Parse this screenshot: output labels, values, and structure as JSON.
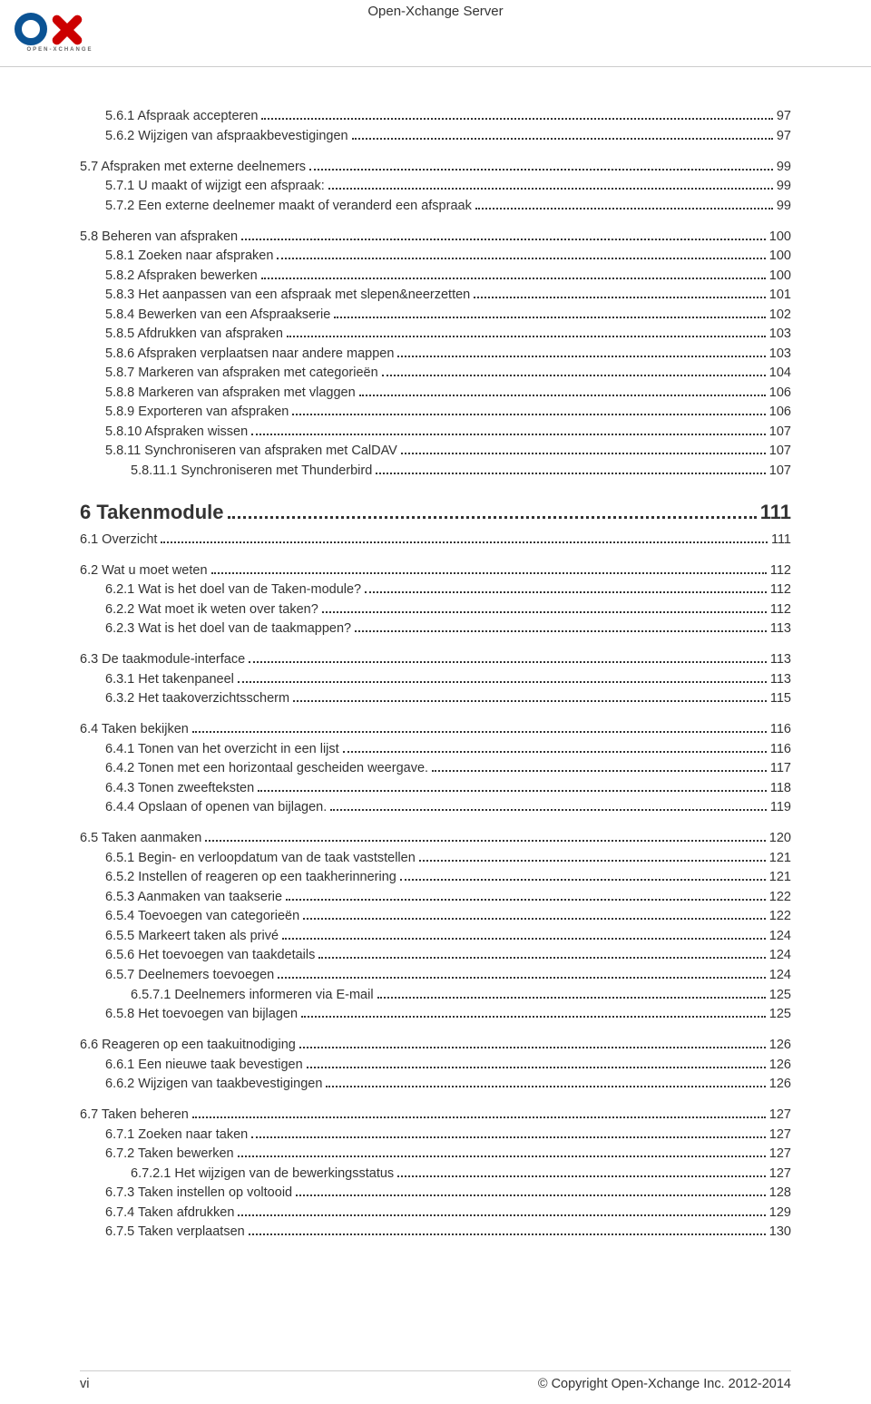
{
  "header": {
    "title": "Open-Xchange Server"
  },
  "logo": {
    "color_blue": "#0b5394",
    "color_red": "#cc0000",
    "subtext": "OPEN-XCHANGE",
    "subtext_color": "#666666"
  },
  "toc": [
    {
      "indent": 1,
      "label": "5.6.1 Afspraak accepteren",
      "page": "97"
    },
    {
      "indent": 1,
      "label": "5.6.2 Wijzigen van afspraakbevestigingen",
      "page": "97"
    },
    {
      "indent": 0,
      "label": "5.7 Afspraken met externe deelnemers",
      "page": "99",
      "group": true
    },
    {
      "indent": 1,
      "label": "5.7.1 U maakt of wijzigt een afspraak:",
      "page": "99"
    },
    {
      "indent": 1,
      "label": "5.7.2 Een externe deelnemer maakt of veranderd een afspraak",
      "page": "99"
    },
    {
      "indent": 0,
      "label": "5.8 Beheren van afspraken",
      "page": "100",
      "group": true
    },
    {
      "indent": 1,
      "label": "5.8.1 Zoeken naar afspraken",
      "page": "100"
    },
    {
      "indent": 1,
      "label": "5.8.2 Afspraken bewerken",
      "page": "100"
    },
    {
      "indent": 1,
      "label": "5.8.3 Het aanpassen van een afspraak met slepen&neerzetten",
      "page": "101"
    },
    {
      "indent": 1,
      "label": "5.8.4 Bewerken van een Afspraakserie",
      "page": "102"
    },
    {
      "indent": 1,
      "label": "5.8.5 Afdrukken van afspraken",
      "page": "103"
    },
    {
      "indent": 1,
      "label": "5.8.6 Afspraken verplaatsen naar andere mappen",
      "page": "103"
    },
    {
      "indent": 1,
      "label": "5.8.7 Markeren van afspraken met categorieën",
      "page": "104"
    },
    {
      "indent": 1,
      "label": "5.8.8 Markeren van afspraken met vlaggen",
      "page": "106"
    },
    {
      "indent": 1,
      "label": "5.8.9 Exporteren van afspraken",
      "page": "106"
    },
    {
      "indent": 1,
      "label": "5.8.10 Afspraken wissen",
      "page": "107"
    },
    {
      "indent": 1,
      "label": "5.8.11 Synchroniseren van afspraken met CalDAV",
      "page": "107"
    },
    {
      "indent": 2,
      "label": "5.8.11.1 Synchroniseren met Thunderbird",
      "page": "107"
    },
    {
      "indent": 0,
      "label": "6 Takenmodule",
      "page": "111",
      "chapter": true
    },
    {
      "indent": 0,
      "label": "6.1 Overzicht",
      "page": "111"
    },
    {
      "indent": 0,
      "label": "6.2 Wat u moet weten",
      "page": "112",
      "group": true
    },
    {
      "indent": 1,
      "label": "6.2.1 Wat is het doel van de Taken-module?",
      "page": "112"
    },
    {
      "indent": 1,
      "label": "6.2.2 Wat moet ik weten over taken?",
      "page": "112"
    },
    {
      "indent": 1,
      "label": "6.2.3 Wat is het doel van de taakmappen?",
      "page": "113"
    },
    {
      "indent": 0,
      "label": "6.3 De taakmodule-interface",
      "page": "113",
      "group": true
    },
    {
      "indent": 1,
      "label": "6.3.1 Het takenpaneel",
      "page": "113"
    },
    {
      "indent": 1,
      "label": "6.3.2 Het taakoverzichtsscherm",
      "page": "115"
    },
    {
      "indent": 0,
      "label": "6.4 Taken bekijken",
      "page": "116",
      "group": true
    },
    {
      "indent": 1,
      "label": "6.4.1 Tonen van het overzicht in een lijst",
      "page": "116"
    },
    {
      "indent": 1,
      "label": "6.4.2 Tonen met een horizontaal gescheiden weergave.",
      "page": "117"
    },
    {
      "indent": 1,
      "label": "6.4.3 Tonen zweefteksten",
      "page": "118"
    },
    {
      "indent": 1,
      "label": "6.4.4 Opslaan of openen van bijlagen.",
      "page": "119"
    },
    {
      "indent": 0,
      "label": "6.5 Taken aanmaken",
      "page": "120",
      "group": true
    },
    {
      "indent": 1,
      "label": "6.5.1 Begin- en verloopdatum van de taak vaststellen",
      "page": "121"
    },
    {
      "indent": 1,
      "label": "6.5.2 Instellen of reageren op een taakherinnering",
      "page": "121"
    },
    {
      "indent": 1,
      "label": "6.5.3 Aanmaken van taakserie",
      "page": "122"
    },
    {
      "indent": 1,
      "label": "6.5.4 Toevoegen van categorieën",
      "page": "122"
    },
    {
      "indent": 1,
      "label": "6.5.5 Markeert taken als privé",
      "page": "124"
    },
    {
      "indent": 1,
      "label": "6.5.6 Het toevoegen van taakdetails",
      "page": "124"
    },
    {
      "indent": 1,
      "label": "6.5.7 Deelnemers toevoegen",
      "page": "124"
    },
    {
      "indent": 2,
      "label": "6.5.7.1 Deelnemers informeren via E-mail",
      "page": "125"
    },
    {
      "indent": 1,
      "label": "6.5.8 Het toevoegen van bijlagen",
      "page": "125"
    },
    {
      "indent": 0,
      "label": "6.6 Reageren op een taakuitnodiging",
      "page": "126",
      "group": true
    },
    {
      "indent": 1,
      "label": "6.6.1 Een nieuwe taak bevestigen",
      "page": "126"
    },
    {
      "indent": 1,
      "label": "6.6.2 Wijzigen van taakbevestigingen",
      "page": "126"
    },
    {
      "indent": 0,
      "label": "6.7 Taken beheren",
      "page": "127",
      "group": true
    },
    {
      "indent": 1,
      "label": "6.7.1 Zoeken naar taken",
      "page": "127"
    },
    {
      "indent": 1,
      "label": "6.7.2 Taken bewerken",
      "page": "127"
    },
    {
      "indent": 2,
      "label": "6.7.2.1 Het wijzigen van de bewerkingsstatus",
      "page": "127"
    },
    {
      "indent": 1,
      "label": "6.7.3 Taken instellen op voltooid",
      "page": "128"
    },
    {
      "indent": 1,
      "label": "6.7.4 Taken afdrukken",
      "page": "129"
    },
    {
      "indent": 1,
      "label": "6.7.5 Taken verplaatsen",
      "page": "130"
    }
  ],
  "footer": {
    "left": "vi",
    "right": "© Copyright Open-Xchange Inc. 2012-2014"
  }
}
